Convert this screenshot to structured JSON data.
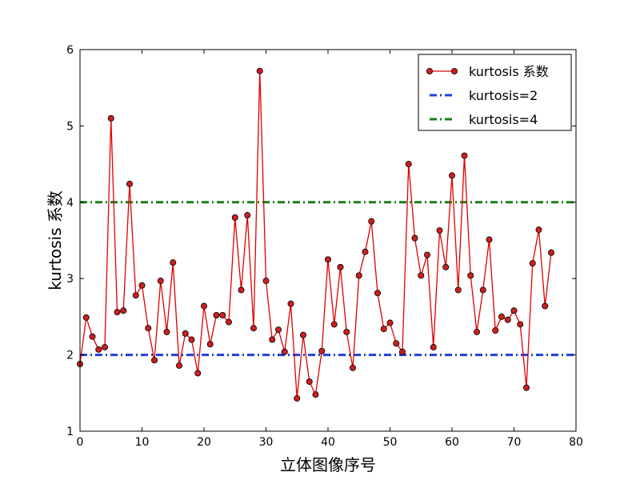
{
  "chart_data": {
    "type": "line",
    "xlabel": "立体图像序号",
    "ylabel": "kurtosis 系数",
    "xlim": [
      0,
      80
    ],
    "ylim": [
      1,
      6
    ],
    "xticks": [
      0,
      10,
      20,
      30,
      40,
      50,
      60,
      70,
      80
    ],
    "yticks": [
      1,
      2,
      3,
      4,
      5,
      6
    ],
    "grid": false,
    "legend_position": "top-right",
    "series": [
      {
        "name": "kurtosis 系数",
        "color": "#e00000",
        "marker": "circle",
        "marker_fill": "#cc1f1f",
        "x": [
          0,
          1,
          2,
          3,
          4,
          5,
          6,
          7,
          8,
          9,
          10,
          11,
          12,
          13,
          14,
          15,
          16,
          17,
          18,
          19,
          20,
          21,
          22,
          23,
          24,
          25,
          26,
          27,
          28,
          29,
          30,
          31,
          32,
          33,
          34,
          35,
          36,
          37,
          38,
          39,
          40,
          41,
          42,
          43,
          44,
          45,
          46,
          47,
          48,
          49,
          50,
          51,
          52,
          53,
          54,
          55,
          56,
          57,
          58,
          59,
          60,
          61,
          62,
          63,
          64,
          65,
          66,
          67,
          68,
          69,
          70,
          71,
          72,
          73,
          74,
          75,
          76
        ],
        "values": [
          1.88,
          2.49,
          2.24,
          2.07,
          2.1,
          5.1,
          2.56,
          2.58,
          4.24,
          2.78,
          2.91,
          2.35,
          1.93,
          2.97,
          2.3,
          3.21,
          1.86,
          2.28,
          2.2,
          1.76,
          2.64,
          2.14,
          2.52,
          2.52,
          2.43,
          3.8,
          2.85,
          3.83,
          2.35,
          5.72,
          2.97,
          2.2,
          2.33,
          2.04,
          2.67,
          1.43,
          2.26,
          1.65,
          1.48,
          2.05,
          3.25,
          2.4,
          3.15,
          2.3,
          1.83,
          3.04,
          3.35,
          3.75,
          2.81,
          2.34,
          2.42,
          2.15,
          2.04,
          4.5,
          3.53,
          3.04,
          3.31,
          2.1,
          3.63,
          3.15,
          4.35,
          2.85,
          4.61,
          3.04,
          2.3,
          2.85,
          3.51,
          2.32,
          2.5,
          2.46,
          2.58,
          2.4,
          1.57,
          3.2,
          3.64,
          2.64,
          3.34
        ]
      },
      {
        "name": "kurtosis=2",
        "color": "#1f3fdc",
        "style": "dash-dot",
        "constant": 2
      },
      {
        "name": "kurtosis=4",
        "color": "#1a7d1a",
        "style": "dash-dot",
        "constant": 4
      }
    ]
  }
}
